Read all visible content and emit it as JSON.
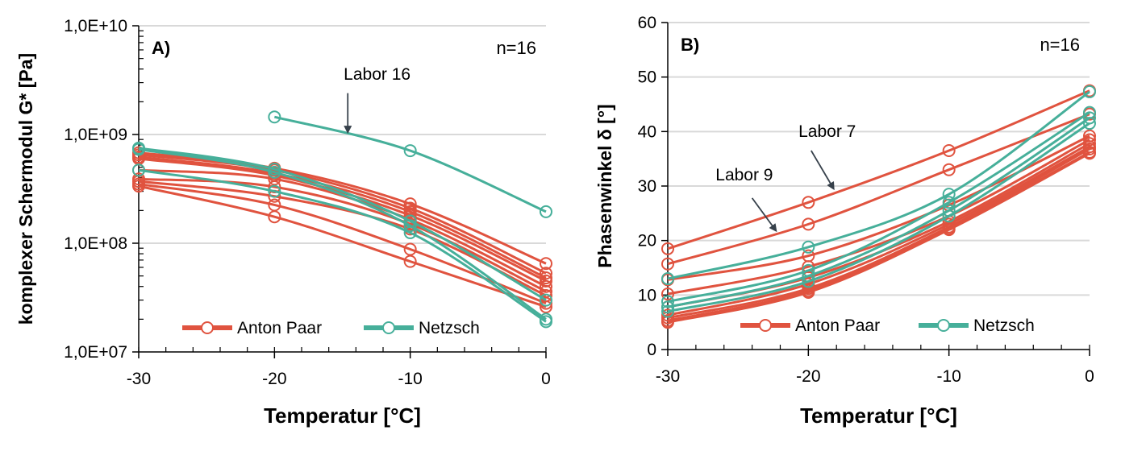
{
  "colors": {
    "anton_paar": "#E0533F",
    "netzsch": "#46AF9A",
    "grid": "#D9D9D9",
    "axis": "#000000",
    "arrow": "#37414B"
  },
  "chart_data": [
    {
      "type": "line",
      "panel_label": "A)",
      "n_label": "n=16",
      "xlabel": "Temperatur [°C]",
      "ylabel": "komplexer Schermodul G* [Pa]",
      "xlim": [
        -30,
        0
      ],
      "ylim": [
        10000000,
        10000000000
      ],
      "y_scale": "log",
      "grid": true,
      "legend_position": "bottom",
      "x_ticks": [
        -30,
        -20,
        -10,
        0
      ],
      "x_tick_labels": [
        "-30",
        "-20",
        "-10",
        "0"
      ],
      "y_ticks": [
        10000000,
        100000000,
        1000000000,
        10000000000
      ],
      "y_tick_labels": [
        "1,0E+07",
        "1,0E+08",
        "1,0E+09",
        "1,0E+10"
      ],
      "x": [
        -30,
        -20,
        -10,
        0
      ],
      "legend": [
        {
          "label": "Anton Paar",
          "group": "anton_paar"
        },
        {
          "label": "Netzsch",
          "group": "netzsch"
        }
      ],
      "annotations": [
        {
          "text": "Labor 16",
          "text_x": -14.9,
          "text_y": 3200000000,
          "arrow_from": [
            -14.6,
            2400000000
          ],
          "arrow_to": [
            -14.6,
            1050000000
          ]
        }
      ],
      "series": [
        {
          "group": "anton_paar",
          "values": [
            680000000,
            490000000,
            230000000,
            65000000
          ]
        },
        {
          "group": "anton_paar",
          "values": [
            650000000,
            470000000,
            210000000,
            53000000
          ]
        },
        {
          "group": "anton_paar",
          "values": [
            620000000,
            440000000,
            195000000,
            48000000
          ]
        },
        {
          "group": "anton_paar",
          "values": [
            600000000,
            420000000,
            180000000,
            45000000
          ]
        },
        {
          "group": "anton_paar",
          "values": [
            470000000,
            390000000,
            165000000,
            40000000
          ]
        },
        {
          "group": "anton_paar",
          "values": [
            390000000,
            330000000,
            150000000,
            36000000
          ]
        },
        {
          "group": "anton_paar",
          "values": [
            370000000,
            270000000,
            135000000,
            33000000
          ]
        },
        {
          "group": "anton_paar",
          "values": [
            350000000,
            225000000,
            88000000,
            28000000
          ]
        },
        {
          "group": "anton_paar",
          "values": [
            335000000,
            175000000,
            68000000,
            26000000
          ]
        },
        {
          "group": "netzsch",
          "values": [
            null,
            1450000000,
            710000000,
            195000000
          ]
        },
        {
          "group": "netzsch",
          "values": [
            750000000,
            480000000,
            160000000,
            30000000
          ]
        },
        {
          "group": "netzsch",
          "values": [
            730000000,
            450000000,
            145000000,
            20000000
          ]
        },
        {
          "group": "netzsch",
          "values": [
            470000000,
            300000000,
            125000000,
            19000000
          ]
        }
      ]
    },
    {
      "type": "line",
      "panel_label": "B)",
      "n_label": "n=16",
      "xlabel": "Temperatur [°C]",
      "ylabel": "Phasenwinkel δ [°]",
      "xlim": [
        -30,
        0
      ],
      "ylim": [
        0,
        60
      ],
      "y_scale": "linear",
      "grid": true,
      "legend_position": "bottom",
      "x_ticks": [
        -30,
        -20,
        -10,
        0
      ],
      "x_tick_labels": [
        "-30",
        "-20",
        "-10",
        "0"
      ],
      "y_ticks": [
        0,
        10,
        20,
        30,
        40,
        50,
        60
      ],
      "y_tick_labels": [
        "0",
        "10",
        "20",
        "30",
        "40",
        "50",
        "60"
      ],
      "x": [
        -30,
        -20,
        -10,
        0
      ],
      "legend": [
        {
          "label": "Anton Paar",
          "group": "anton_paar"
        },
        {
          "label": "Netzsch",
          "group": "netzsch"
        }
      ],
      "annotations": [
        {
          "text": "Labor 7",
          "text_x": -20.7,
          "text_y": 39,
          "arrow_from": [
            -19.8,
            36.5
          ],
          "arrow_to": [
            -18.2,
            29.5
          ]
        },
        {
          "text": "Labor 9",
          "text_x": -26.6,
          "text_y": 31,
          "arrow_from": [
            -24,
            27.8
          ],
          "arrow_to": [
            -22.3,
            21.8
          ]
        }
      ],
      "series": [
        {
          "group": "anton_paar",
          "values": [
            18.5,
            27,
            36.5,
            47.5
          ]
        },
        {
          "group": "anton_paar",
          "values": [
            15.7,
            23,
            33,
            43.2
          ]
        },
        {
          "group": "anton_paar",
          "values": [
            12.8,
            17.2,
            26.5,
            39.2
          ]
        },
        {
          "group": "anton_paar",
          "values": [
            10.2,
            15.2,
            24.5,
            38.5
          ]
        },
        {
          "group": "anton_paar",
          "values": [
            7.8,
            13.2,
            23.5,
            37.8
          ]
        },
        {
          "group": "anton_paar",
          "values": [
            6.3,
            12,
            23,
            37.2
          ]
        },
        {
          "group": "anton_paar",
          "values": [
            5.8,
            11.2,
            22.5,
            36.8
          ]
        },
        {
          "group": "anton_paar",
          "values": [
            5.3,
            10.8,
            22.2,
            36.2
          ]
        },
        {
          "group": "anton_paar",
          "values": [
            5,
            10.5,
            22,
            36
          ]
        },
        {
          "group": "netzsch",
          "values": [
            13,
            18.8,
            28.5,
            47.3
          ]
        },
        {
          "group": "netzsch",
          "values": [
            8.8,
            14.5,
            27,
            43.5
          ]
        },
        {
          "group": "netzsch",
          "values": [
            7.8,
            13.5,
            25.5,
            42.5
          ]
        },
        {
          "group": "netzsch",
          "values": [
            7,
            12.5,
            24.5,
            41.5
          ]
        }
      ]
    }
  ]
}
